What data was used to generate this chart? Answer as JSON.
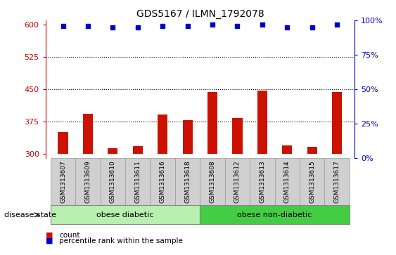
{
  "title": "GDS5167 / ILMN_1792078",
  "samples": [
    "GSM1313607",
    "GSM1313609",
    "GSM1313610",
    "GSM1313611",
    "GSM1313616",
    "GSM1313618",
    "GSM1313608",
    "GSM1313612",
    "GSM1313613",
    "GSM1313614",
    "GSM1313615",
    "GSM1313617"
  ],
  "counts": [
    350,
    393,
    313,
    318,
    392,
    378,
    443,
    383,
    447,
    320,
    316,
    443
  ],
  "percentile_ranks": [
    96,
    96,
    95,
    95,
    96,
    96,
    97,
    96,
    97,
    95,
    95,
    97
  ],
  "group_labels": [
    "obese diabetic",
    "obese non-diabetic"
  ],
  "group_light_green": "#b2f0b2",
  "group_dark_green": "#44dd44",
  "bar_color": "#cc1100",
  "dot_color": "#0000cc",
  "ylim_left": [
    290,
    610
  ],
  "yticks_left": [
    300,
    375,
    450,
    525,
    600
  ],
  "ylim_right": [
    0,
    100
  ],
  "yticks_right": [
    0,
    25,
    50,
    75,
    100
  ],
  "yticklabels_right": [
    "0%",
    "25%",
    "50%",
    "75%",
    "100%"
  ],
  "left_tick_color": "#cc0000",
  "right_tick_color": "#0000cc",
  "grid_yticks": [
    375,
    450,
    525
  ],
  "disease_state_label": "disease state",
  "legend_count_label": "count",
  "legend_percentile_label": "percentile rank within the sample",
  "n_diabetic": 6,
  "n_nondiabetic": 6
}
